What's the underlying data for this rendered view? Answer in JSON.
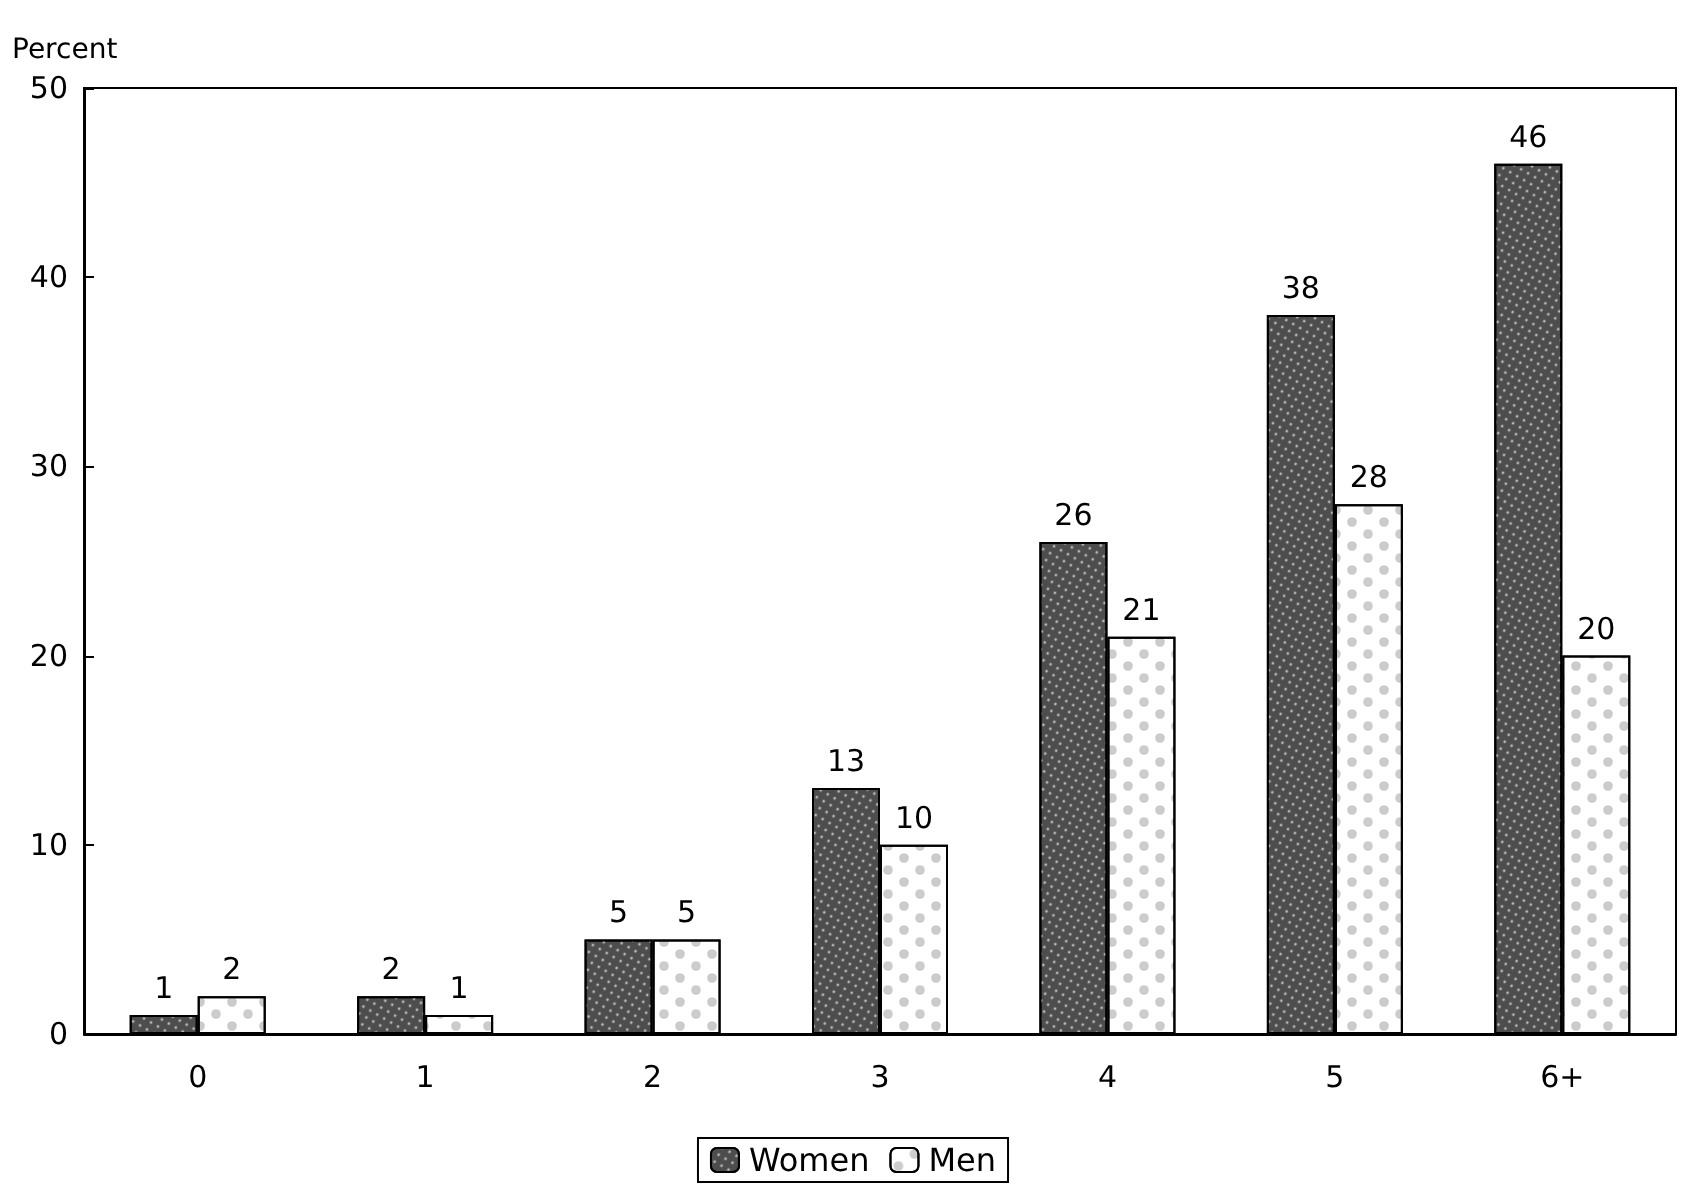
{
  "chart_data": {
    "type": "bar",
    "ylabel": "Percent",
    "categories": [
      "0",
      "1",
      "2",
      "3",
      "4",
      "5",
      "6+"
    ],
    "series": [
      {
        "name": "Women",
        "color": "#4d4d4d",
        "values": [
          1,
          2,
          5,
          13,
          26,
          38,
          46
        ]
      },
      {
        "name": "Men",
        "color": "#ffffff",
        "values": [
          2,
          1,
          5,
          10,
          21,
          28,
          20
        ]
      }
    ],
    "ylim": [
      0,
      50
    ],
    "yticks": [
      0,
      10,
      20,
      30,
      40,
      50
    ],
    "grid": false,
    "legend": "bottom",
    "data_labels": true
  }
}
